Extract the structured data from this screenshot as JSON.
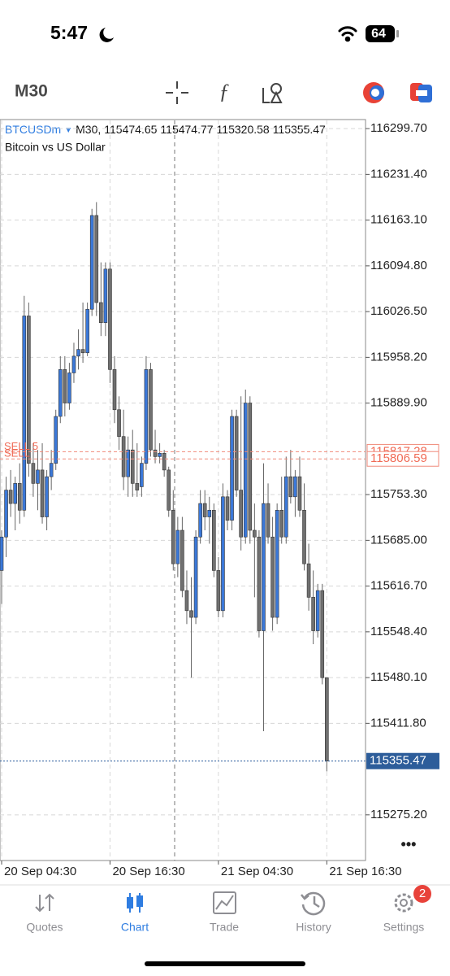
{
  "status_bar": {
    "time": "5:47",
    "battery": "64"
  },
  "toolbar": {
    "timeframe": "M30"
  },
  "chart_data": {
    "type": "candlestick",
    "symbol": "BTCUSDm",
    "timeframe": "M30,",
    "quote": [
      115474.65,
      115474.77,
      115320.58,
      115355.47
    ],
    "description": "Bitcoin vs US Dollar",
    "categories": [
      "20 Sep 04:30",
      null,
      null,
      null,
      null,
      null,
      null,
      null,
      null,
      null,
      null,
      null,
      null,
      null,
      null,
      null,
      null,
      null,
      null,
      null,
      null,
      null,
      null,
      null,
      "20 Sep 16:30",
      null,
      null,
      null,
      null,
      null,
      null,
      null,
      null,
      null,
      null,
      null,
      null,
      null,
      null,
      null,
      null,
      null,
      null,
      null,
      null,
      null,
      null,
      null,
      "21 Sep 04:30",
      null,
      null,
      null,
      null,
      null,
      null,
      null,
      null,
      null,
      null,
      null,
      null,
      null,
      null,
      null,
      null,
      null,
      null,
      null,
      null,
      null,
      null,
      null,
      "21 Sep 16:30"
    ],
    "open": [
      115640,
      115690,
      115760,
      115740,
      115770,
      115730,
      116020,
      115800,
      115770,
      115790,
      115720,
      115780,
      115800,
      115870,
      115940,
      115890,
      115935,
      115960,
      115970,
      115965,
      116030,
      116170,
      116040,
      116010,
      116090,
      115940,
      115880,
      115840,
      115780,
      115820,
      115770,
      115765,
      115800,
      115940,
      115820,
      115810,
      115815,
      115790,
      115730,
      115650,
      115700,
      115610,
      115580,
      115570,
      115690,
      115740,
      115720,
      115730,
      115640,
      115580,
      115750,
      115715,
      115870,
      115760,
      115690,
      115890,
      115700,
      115690,
      115550,
      115740,
      115690,
      115570,
      115730,
      115690,
      115780,
      115750,
      115780,
      115730,
      115650,
      115600,
      115550,
      115610,
      115480
    ],
    "high": [
      115700,
      115780,
      115790,
      115780,
      115800,
      116050,
      116040,
      115830,
      115820,
      115830,
      115790,
      115820,
      115880,
      115960,
      115960,
      115950,
      115980,
      116000,
      116040,
      116040,
      116180,
      116190,
      116100,
      116100,
      116100,
      115960,
      115900,
      115880,
      115840,
      115850,
      115830,
      115810,
      115960,
      115950,
      115850,
      115830,
      115820,
      115795,
      115760,
      115720,
      115720,
      115640,
      115630,
      115700,
      115760,
      115760,
      115750,
      115740,
      115660,
      115770,
      115760,
      115880,
      115880,
      115900,
      115910,
      115900,
      115740,
      115700,
      115800,
      115770,
      115720,
      115740,
      115780,
      115810,
      115820,
      115790,
      115810,
      115770,
      115680,
      115640,
      115620,
      115620,
      115480
    ],
    "low": [
      115590,
      115660,
      115720,
      115700,
      115710,
      115720,
      115780,
      115750,
      115730,
      115710,
      115700,
      115760,
      115790,
      115860,
      115870,
      115880,
      115920,
      115940,
      115950,
      115960,
      116020,
      116020,
      115990,
      115990,
      115920,
      115860,
      115820,
      115760,
      115750,
      115750,
      115750,
      115750,
      115790,
      115810,
      115800,
      115800,
      115780,
      115720,
      115640,
      115630,
      115600,
      115560,
      115480,
      115560,
      115680,
      115700,
      115680,
      115630,
      115570,
      115570,
      115700,
      115700,
      115750,
      115670,
      115680,
      115680,
      115600,
      115540,
      115400,
      115680,
      115550,
      115560,
      115680,
      115680,
      115740,
      115720,
      115720,
      115640,
      115580,
      115530,
      115540,
      115470,
      115340
    ],
    "close": [
      115690,
      115760,
      115740,
      115770,
      115730,
      116020,
      115800,
      115770,
      115790,
      115720,
      115780,
      115800,
      115870,
      115940,
      115890,
      115935,
      115960,
      115970,
      115965,
      116030,
      116170,
      116040,
      116010,
      116090,
      115940,
      115880,
      115840,
      115780,
      115820,
      115770,
      115760,
      115800,
      115940,
      115820,
      115810,
      115815,
      115790,
      115730,
      115650,
      115700,
      115610,
      115580,
      115570,
      115690,
      115740,
      115720,
      115730,
      115640,
      115580,
      115750,
      115715,
      115870,
      115760,
      115690,
      115890,
      115700,
      115690,
      115550,
      115740,
      115690,
      115570,
      115730,
      115690,
      115780,
      115750,
      115780,
      115730,
      115650,
      115600,
      115550,
      115610,
      115480,
      115355.47
    ],
    "up_color": "#3b78d8",
    "down_color": "#707070",
    "ylim": [
      115207,
      116312
    ],
    "yticks": [
      {
        "value": 116299.7,
        "label": "116299.70"
      },
      {
        "value": 116231.4,
        "label": "116231.40"
      },
      {
        "value": 116163.1,
        "label": "116163.10"
      },
      {
        "value": 116094.8,
        "label": "116094.80"
      },
      {
        "value": 116026.5,
        "label": "116026.50"
      },
      {
        "value": 115958.2,
        "label": "115958.20"
      },
      {
        "value": 115889.9,
        "label": "115889.90"
      },
      {
        "value": 115753.3,
        "label": "115753.30"
      },
      {
        "value": 115685,
        "label": "115685.00"
      },
      {
        "value": 115616.7,
        "label": "115616.70"
      },
      {
        "value": 115548.4,
        "label": "115548.40"
      },
      {
        "value": 115480.1,
        "label": "115480.10"
      },
      {
        "value": 115411.8,
        "label": "115411.80"
      },
      {
        "value": 115275.2,
        "label": "115275.20"
      }
    ],
    "grid": true,
    "price_lines": [
      {
        "label": "SELL 5",
        "value": 115817.28
      },
      {
        "label": "SELL",
        "value": 115806.59
      }
    ],
    "current_price": 115355.47
  },
  "nav": {
    "items": [
      "Quotes",
      "Chart",
      "Trade",
      "History",
      "Settings"
    ],
    "active": "Chart",
    "badge": "2"
  }
}
